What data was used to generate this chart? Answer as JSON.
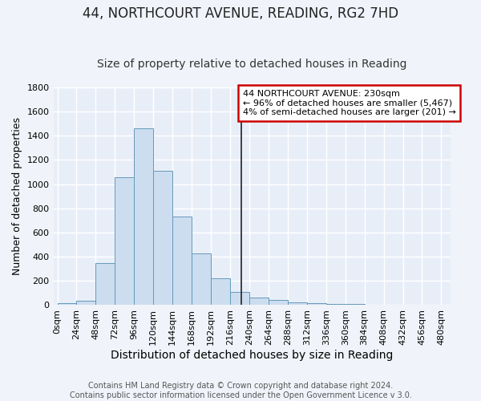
{
  "title": "44, NORTHCOURT AVENUE, READING, RG2 7HD",
  "subtitle": "Size of property relative to detached houses in Reading",
  "xlabel": "Distribution of detached houses by size in Reading",
  "ylabel": "Number of detached properties",
  "bin_starts": [
    0,
    24,
    48,
    72,
    96,
    120,
    144,
    168,
    192,
    216,
    240,
    264,
    288,
    312,
    336,
    360,
    384,
    408,
    432,
    456
  ],
  "bin_width": 24,
  "bar_heights": [
    15,
    35,
    350,
    1060,
    1465,
    1110,
    735,
    430,
    220,
    110,
    60,
    45,
    25,
    15,
    10,
    8,
    5,
    4,
    3,
    2
  ],
  "bar_face_color": "#ccddf0",
  "bar_edge_color": "#6699bb",
  "background_color": "#f0f4fa",
  "plot_bg_color": "#e8eef8",
  "grid_color": "#ffffff",
  "vline_x": 230,
  "vline_color": "#222222",
  "annotation_text": "44 NORTHCOURT AVENUE: 230sqm\n← 96% of detached houses are smaller (5,467)\n4% of semi-detached houses are larger (201) →",
  "annotation_box_edge_color": "#cc0000",
  "annotation_fill": "#ffffff",
  "ylim": [
    0,
    1800
  ],
  "yticks": [
    0,
    200,
    400,
    600,
    800,
    1000,
    1200,
    1400,
    1600,
    1800
  ],
  "xlim_left": -5,
  "xlim_right": 492,
  "footer_line1": "Contains HM Land Registry data © Crown copyright and database right 2024.",
  "footer_line2": "Contains public sector information licensed under the Open Government Licence v 3.0.",
  "title_fontsize": 12,
  "subtitle_fontsize": 10,
  "xlabel_fontsize": 10,
  "ylabel_fontsize": 9,
  "tick_fontsize": 8,
  "footer_fontsize": 7,
  "ann_fontsize": 8
}
